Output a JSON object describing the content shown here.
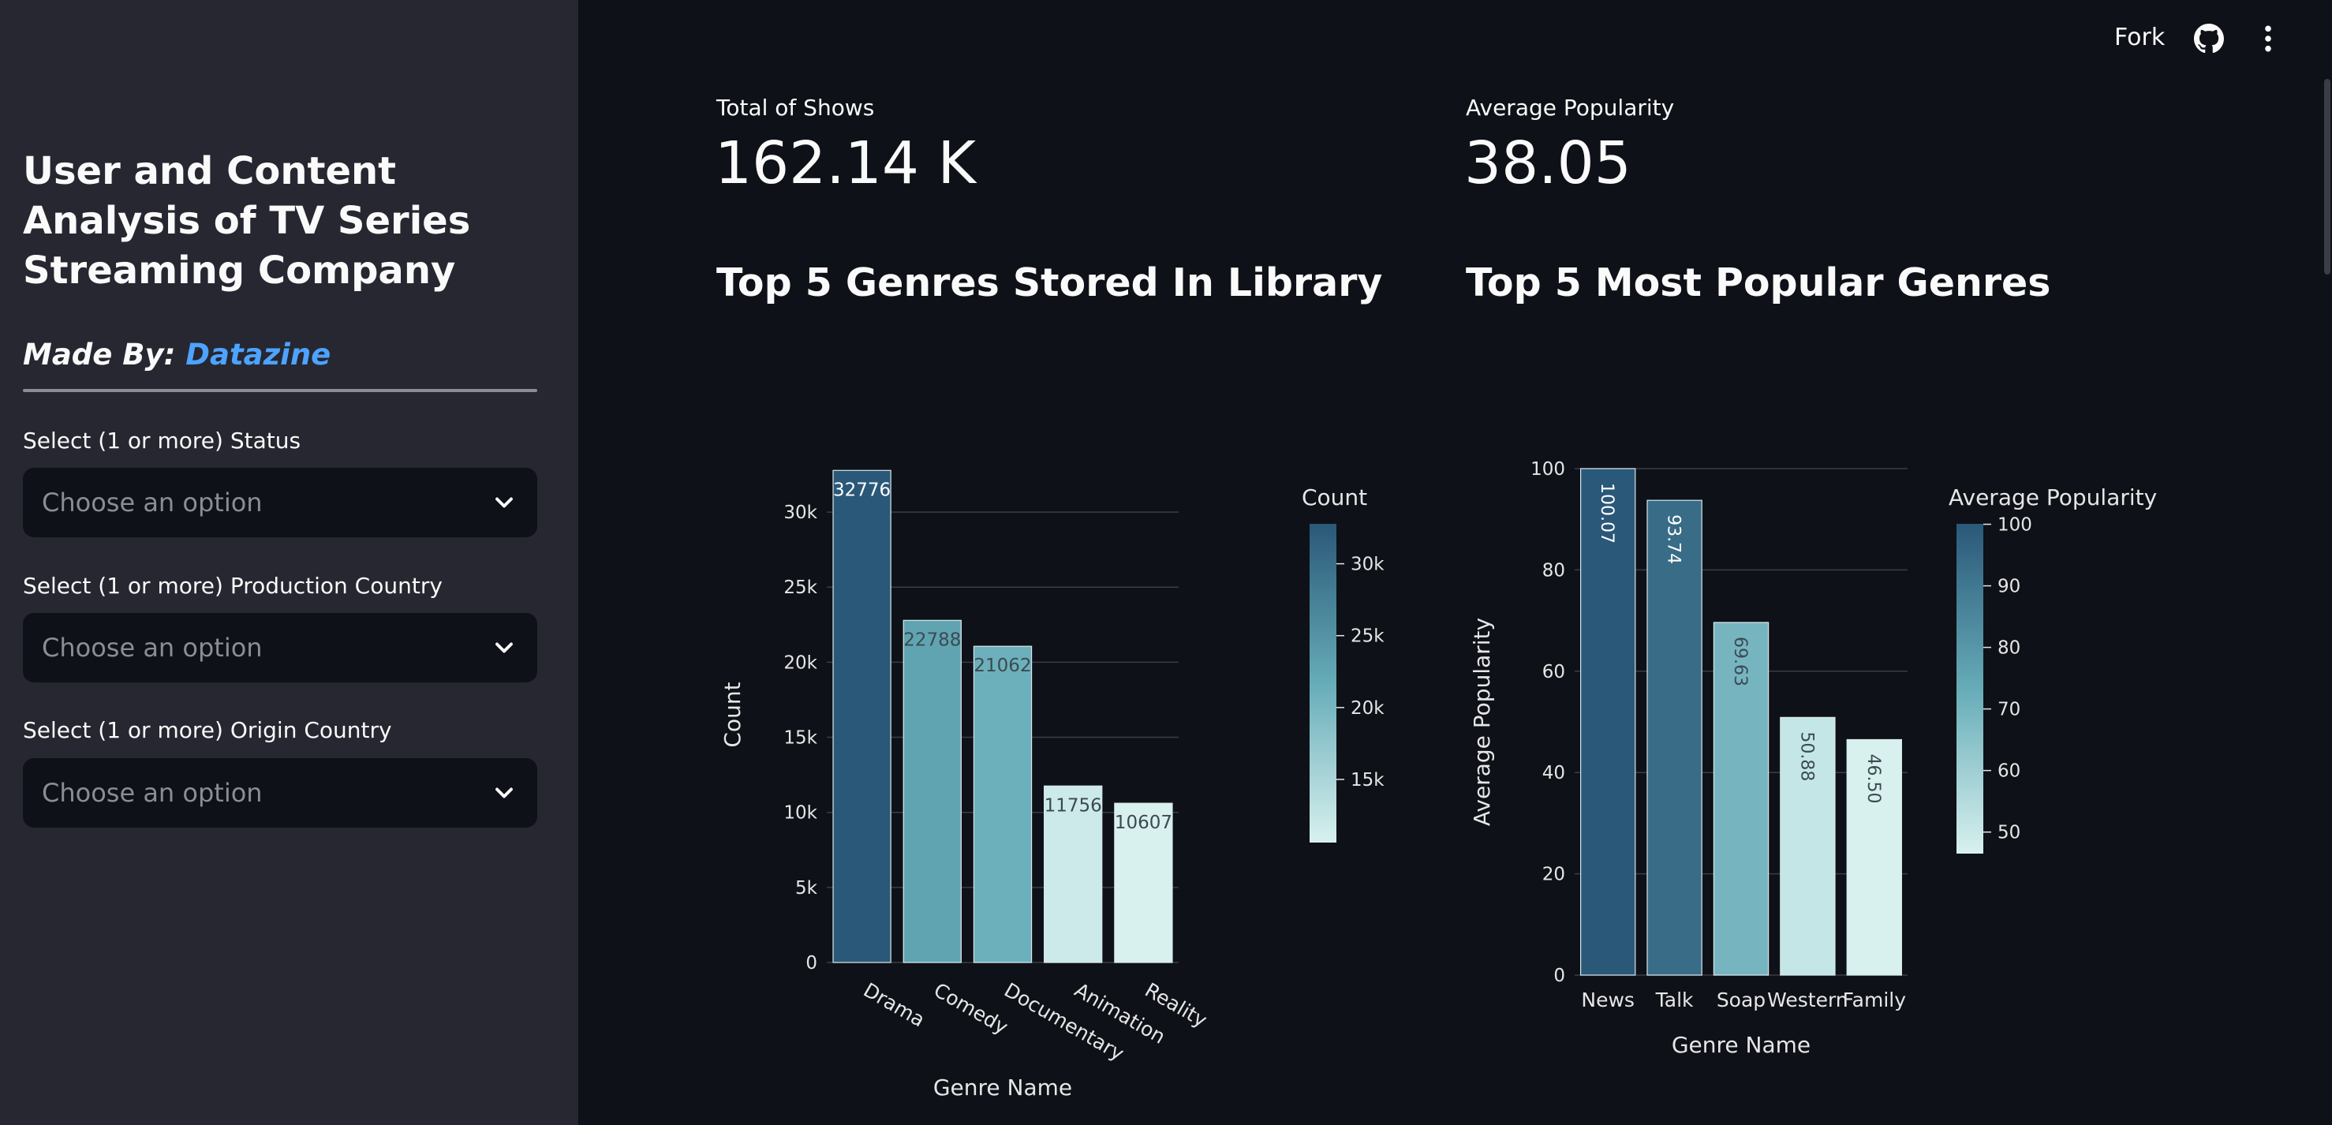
{
  "sidebar": {
    "title": "User and Content Analysis of TV Series Streaming Company",
    "made_by_prefix": "Made By:",
    "made_by_link": "Datazine",
    "filters": [
      {
        "label": "Select (1 or more) Status",
        "placeholder": "Choose an option"
      },
      {
        "label": "Select (1 or more) Production Country",
        "placeholder": "Choose an option"
      },
      {
        "label": "Select (1 or more) Origin Country",
        "placeholder": "Choose an option"
      }
    ]
  },
  "topbar": {
    "fork_label": "Fork",
    "icons": [
      "github-icon",
      "more-vertical-icon"
    ]
  },
  "metrics": [
    {
      "label": "Total of Shows",
      "value": "162.14 K"
    },
    {
      "label": "Average Popularity",
      "value": "38.05"
    }
  ],
  "sections": {
    "library_title": "Top 5 Genres Stored In Library",
    "popular_title": "Top 5 Most Popular Genres"
  },
  "colors": {
    "background": "#0e1117",
    "sidebar": "#262730",
    "link": "#4da3ff",
    "scale_dark": "#2a5878",
    "scale_light": "#d8f1ef"
  },
  "chart_data": [
    {
      "type": "bar",
      "categories": [
        "Drama",
        "Comedy",
        "Documentary",
        "Animation",
        "Reality"
      ],
      "values": [
        32776,
        22788,
        21062,
        11756,
        10607
      ],
      "data_labels": [
        "32776",
        "22788",
        "21062",
        "11756",
        "10607"
      ],
      "xlabel": "Genre Name",
      "ylabel": "Count",
      "ylim": [
        0,
        33000
      ],
      "yticks": [
        0,
        5000,
        10000,
        15000,
        20000,
        25000,
        30000
      ],
      "ytick_labels": [
        "0",
        "5k",
        "10k",
        "15k",
        "20k",
        "25k",
        "30k"
      ],
      "colorbar": {
        "title": "Count",
        "range": [
          10607,
          32776
        ],
        "ticks": [
          15000,
          20000,
          25000,
          30000
        ],
        "tick_labels": [
          "15k",
          "20k",
          "25k",
          "30k"
        ]
      },
      "grid": true
    },
    {
      "type": "bar",
      "categories": [
        "News",
        "Talk",
        "Soap",
        "Western",
        "Family"
      ],
      "values": [
        100.07,
        93.74,
        69.63,
        50.88,
        46.5
      ],
      "data_labels": [
        "100.07",
        "93.74",
        "69.63",
        "50.88",
        "46.50"
      ],
      "xlabel": "Genre Name",
      "ylabel": "Average Popularity",
      "ylim": [
        0,
        100
      ],
      "yticks": [
        0,
        20,
        40,
        60,
        80,
        100
      ],
      "ytick_labels": [
        "0",
        "20",
        "40",
        "60",
        "80",
        "100"
      ],
      "colorbar": {
        "title": "Average Popularity",
        "range": [
          46.5,
          100.07
        ],
        "ticks": [
          50,
          60,
          70,
          80,
          90,
          100
        ],
        "tick_labels": [
          "50",
          "60",
          "70",
          "80",
          "90",
          "100"
        ]
      },
      "grid": true
    }
  ]
}
